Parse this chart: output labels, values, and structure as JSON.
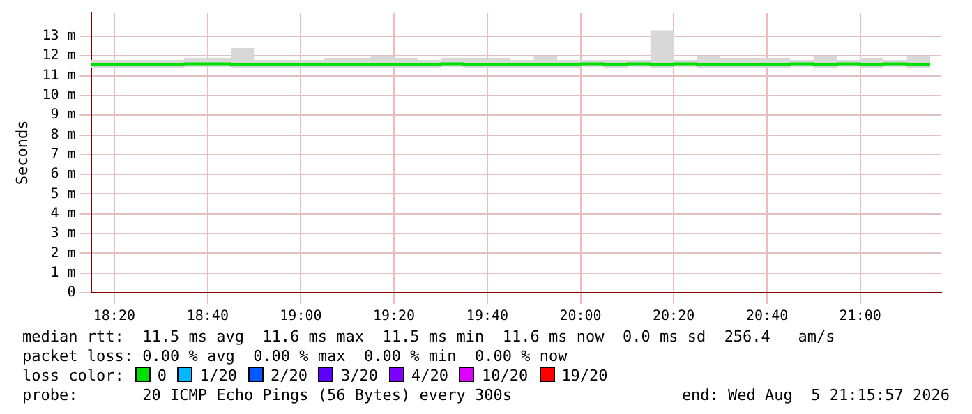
{
  "chart_data": {
    "type": "step",
    "ylabel": "Seconds",
    "x": [
      18.25,
      18.333,
      18.417,
      18.5,
      18.583,
      18.667,
      18.75,
      18.833,
      18.917,
      19.0,
      19.083,
      19.167,
      19.25,
      19.333,
      19.417,
      19.5,
      19.583,
      19.667,
      19.75,
      19.833,
      19.917,
      20.0,
      20.083,
      20.167,
      20.25,
      20.333,
      20.417,
      20.5,
      20.583,
      20.667,
      20.75,
      20.833,
      20.917,
      21.0,
      21.083,
      21.167,
      21.25
    ],
    "xlim": [
      18.25,
      21.29
    ],
    "xticks": [
      {
        "value": 18.333,
        "label": "18:20"
      },
      {
        "value": 18.667,
        "label": "18:40"
      },
      {
        "value": 19.0,
        "label": "19:00"
      },
      {
        "value": 19.333,
        "label": "19:20"
      },
      {
        "value": 19.667,
        "label": "19:40"
      },
      {
        "value": 20.0,
        "label": "20:00"
      },
      {
        "value": 20.333,
        "label": "20:20"
      },
      {
        "value": 20.667,
        "label": "20:40"
      },
      {
        "value": 21.0,
        "label": "21:00"
      }
    ],
    "ylim": [
      0,
      14.2
    ],
    "yticks": [
      0,
      {
        "value": 1,
        "label": "1 m"
      },
      {
        "value": 2,
        "label": "2 m"
      },
      {
        "value": 3,
        "label": "3 m"
      },
      {
        "value": 4,
        "label": "4 m"
      },
      {
        "value": 5,
        "label": "5 m"
      },
      {
        "value": 6,
        "label": "6 m"
      },
      {
        "value": 7,
        "label": "7 m"
      },
      {
        "value": 8,
        "label": "8 m"
      },
      {
        "value": 9,
        "label": "9 m"
      },
      {
        "value": 10,
        "label": "10 m"
      },
      {
        "value": 11,
        "label": "11 m"
      },
      {
        "value": 12,
        "label": "12 m"
      },
      {
        "value": 13,
        "label": "13 m"
      }
    ],
    "series": [
      {
        "name": "0",
        "color": "#00e000",
        "values": [
          11.55,
          11.55,
          11.55,
          11.55,
          11.6,
          11.6,
          11.55,
          11.55,
          11.55,
          11.55,
          11.55,
          11.55,
          11.55,
          11.55,
          11.55,
          11.6,
          11.55,
          11.55,
          11.55,
          11.55,
          11.55,
          11.6,
          11.55,
          11.6,
          11.55,
          11.6,
          11.55,
          11.55,
          11.55,
          11.55,
          11.6,
          11.55,
          11.6,
          11.55,
          11.6,
          11.55,
          11.55
        ],
        "lower": [
          11.4,
          11.4,
          11.4,
          11.4,
          11.45,
          11.45,
          11.4,
          11.4,
          11.4,
          11.4,
          11.4,
          11.4,
          11.4,
          11.4,
          11.4,
          11.45,
          11.4,
          11.4,
          11.4,
          11.4,
          11.4,
          11.45,
          11.4,
          11.45,
          11.4,
          11.45,
          11.4,
          11.4,
          11.4,
          11.4,
          11.45,
          11.4,
          11.45,
          11.4,
          11.45,
          11.4,
          11.4
        ],
        "upper": [
          11.8,
          11.8,
          11.8,
          11.8,
          11.9,
          11.9,
          12.4,
          11.8,
          11.8,
          11.8,
          11.9,
          11.9,
          12.0,
          11.9,
          11.8,
          11.9,
          11.9,
          11.9,
          11.8,
          12.0,
          11.8,
          11.8,
          11.8,
          11.8,
          13.3,
          11.8,
          12.0,
          11.9,
          11.9,
          11.9,
          11.8,
          12.0,
          11.8,
          11.9,
          11.8,
          12.0,
          12.0
        ]
      },
      {
        "name": "1/20",
        "color": "#00b8ff",
        "values": [
          null,
          null,
          null,
          null,
          null,
          null,
          null,
          null,
          null,
          null,
          null,
          null,
          null,
          null,
          null,
          null,
          null,
          null,
          null,
          null,
          null,
          null,
          null,
          null,
          null,
          null,
          null,
          null,
          null,
          null,
          null,
          null,
          null,
          null,
          null,
          null,
          null
        ]
      },
      {
        "name": "2/20",
        "color": "#0059ff",
        "values": [
          null,
          null,
          null,
          null,
          null,
          null,
          null,
          null,
          null,
          null,
          null,
          null,
          null,
          null,
          null,
          null,
          null,
          null,
          null,
          null,
          null,
          null,
          null,
          null,
          null,
          null,
          null,
          null,
          null,
          null,
          null,
          null,
          null,
          null,
          null,
          null,
          null
        ]
      },
      {
        "name": "3/20",
        "color": "#5e00ff",
        "values": [
          null,
          null,
          null,
          null,
          null,
          null,
          null,
          null,
          null,
          null,
          null,
          null,
          null,
          null,
          null,
          null,
          null,
          null,
          null,
          null,
          null,
          null,
          null,
          null,
          null,
          null,
          null,
          null,
          null,
          null,
          null,
          null,
          null,
          null,
          null,
          null,
          null
        ]
      },
      {
        "name": "4/20",
        "color": "#7e00ff",
        "values": [
          null,
          null,
          null,
          null,
          null,
          null,
          null,
          null,
          null,
          null,
          null,
          null,
          null,
          null,
          null,
          null,
          null,
          null,
          null,
          null,
          null,
          null,
          null,
          null,
          null,
          null,
          null,
          null,
          null,
          null,
          null,
          null,
          null,
          null,
          null,
          null,
          null
        ]
      },
      {
        "name": "10/20",
        "color": "#dd00ff",
        "values": [
          null,
          null,
          null,
          null,
          null,
          null,
          null,
          null,
          null,
          null,
          null,
          null,
          null,
          null,
          null,
          null,
          null,
          null,
          null,
          null,
          null,
          null,
          null,
          null,
          null,
          null,
          null,
          null,
          null,
          null,
          null,
          null,
          null,
          null,
          null,
          null,
          null
        ]
      },
      {
        "name": "19/20",
        "color": "#ff0000",
        "values": [
          null,
          null,
          null,
          null,
          null,
          null,
          null,
          null,
          null,
          null,
          null,
          null,
          null,
          null,
          null,
          null,
          null,
          null,
          null,
          null,
          null,
          null,
          null,
          null,
          null,
          null,
          null,
          null,
          null,
          null,
          null,
          null,
          null,
          null,
          null,
          null,
          null
        ]
      }
    ],
    "grid": true,
    "legend": "bottom",
    "legend_title": "loss color:",
    "annotations": [
      "median rtt:  11.5 ms avg  11.6 ms max  11.5 ms min  11.6 ms now  0.0 ms sd  256.4   am/s",
      "packet loss: 0.00 % avg  0.00 % max  0.00 % min  0.00 % now",
      "probe:       20 ICMP Echo Pings (56 Bytes) every 300s",
      "end: Wed Aug  5 21:15:57 2026"
    ]
  }
}
